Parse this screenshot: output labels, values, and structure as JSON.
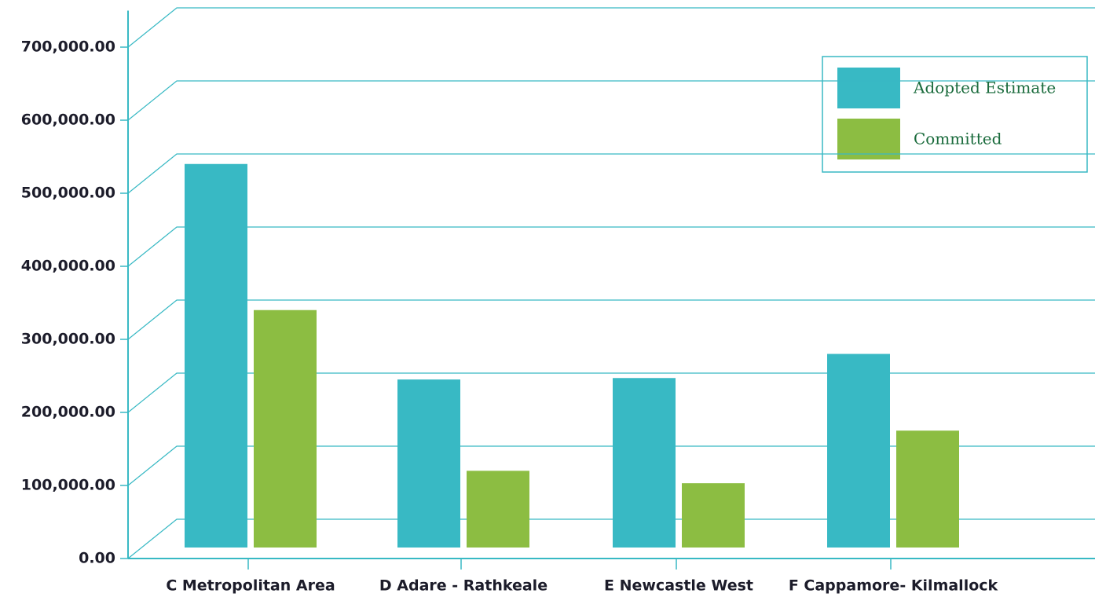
{
  "chart_data": {
    "type": "bar",
    "categories": [
      "C Metropolitan Area",
      "D Adare - Rathkeale",
      "E Newcastle West",
      "F Cappamore- Kilmallock"
    ],
    "series": [
      {
        "name": "Adopted Estimate",
        "color": "#38b9c4",
        "values": [
          525000,
          230000,
          232000,
          265000
        ]
      },
      {
        "name": "Committed",
        "color": "#8cbd42",
        "values": [
          325000,
          105000,
          88000,
          160000
        ]
      }
    ],
    "ylim": [
      0,
      750000
    ],
    "yticks": [
      {
        "value": 0,
        "label": "0.00"
      },
      {
        "value": 100000,
        "label": "100,000.00"
      },
      {
        "value": 200000,
        "label": "200,000.00"
      },
      {
        "value": 300000,
        "label": "300,000.00"
      },
      {
        "value": 400000,
        "label": "400,000.00"
      },
      {
        "value": 500000,
        "label": "500,000.00"
      },
      {
        "value": 600000,
        "label": "600,000.00"
      },
      {
        "value": 700000,
        "label": "700,000.00"
      }
    ],
    "grid": true
  }
}
